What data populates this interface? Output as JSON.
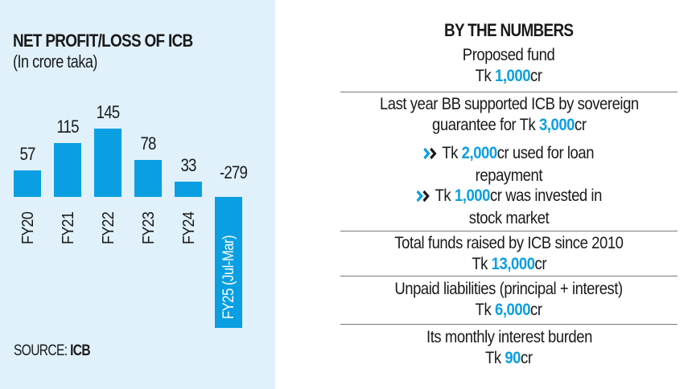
{
  "chart_data": {
    "type": "bar",
    "title": "NET PROFIT/LOSS OF ICB",
    "subtitle": "(In crore taka)",
    "xlabel": "",
    "ylabel": "",
    "categories": [
      "FY20",
      "FY21",
      "FY22",
      "FY23",
      "FY24",
      "FY25 (Jul-Mar)"
    ],
    "values": [
      57,
      115,
      145,
      78,
      33,
      -279
    ],
    "value_labels": [
      "57",
      "115",
      "145",
      "78",
      "33",
      "-279"
    ],
    "grid": false,
    "legend": null,
    "bar_color": "#0a9fe2",
    "source": "SOURCE: ICB"
  },
  "left_panel": {
    "title": "NET PROFIT/LOSS OF ICB",
    "subtitle": "(In crore taka)",
    "source_prefix": "SOURCE:",
    "source_name": "ICB"
  },
  "right_panel": {
    "title": "BY THE NUMBERS",
    "items": [
      {
        "label": "Proposed fund",
        "prefix": "Tk ",
        "value": "1,000",
        "suffix": "cr"
      },
      {
        "label_line1": "Last year BB supported ICB by sovereign",
        "label_line2_prefix": "guarantee for Tk ",
        "value": "3,000",
        "suffix": "cr",
        "bullets": [
          {
            "prefix": "Tk ",
            "value": "2,000",
            "suffix": "cr used for loan",
            "line2": "repayment"
          },
          {
            "prefix": "Tk ",
            "value": "1,000",
            "suffix": "cr was invested in",
            "line2": "stock market"
          }
        ]
      },
      {
        "label": "Total funds raised by ICB since 2010",
        "prefix": "Tk ",
        "value": "13,000",
        "suffix": "cr"
      },
      {
        "label": "Unpaid liabilities (principal + interest)",
        "prefix": "Tk ",
        "value": "6,000",
        "suffix": "cr"
      },
      {
        "label": "Its monthly interest burden",
        "prefix": "Tk ",
        "value": "90",
        "suffix": "cr"
      }
    ]
  },
  "colors": {
    "accent": "#0a9fe2",
    "panel_bg": "#e0f1fb",
    "text": "#1a1a1a",
    "divider": "#7a7a7a",
    "chevron_dark": "#1a1a1a"
  }
}
